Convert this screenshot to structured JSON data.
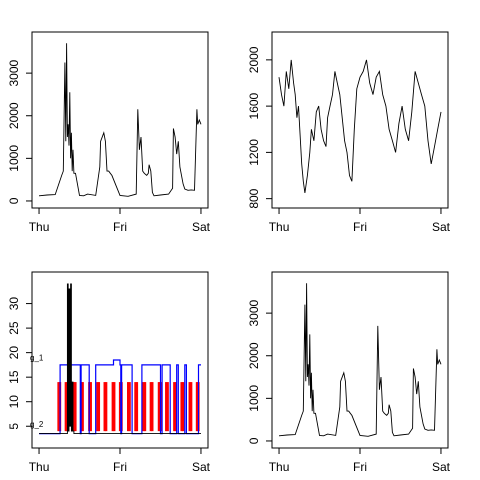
{
  "chart_data": [
    {
      "type": "line",
      "panel": "top-left",
      "color": "#000000",
      "x_ticks": [
        "Thu",
        "Fri",
        "Sat"
      ],
      "xlim": [
        0,
        2
      ],
      "ylim": [
        0,
        3800
      ],
      "y_ticks": [
        0,
        1000,
        2000,
        3000
      ],
      "y_tick_labels": [
        "0",
        "1000",
        "2000",
        "3000"
      ],
      "series": [
        {
          "x": [
            0,
            0.1,
            0.2,
            0.28,
            0.3,
            0.32,
            0.33,
            0.34,
            0.35,
            0.36,
            0.37,
            0.38,
            0.39,
            0.4,
            0.41,
            0.42,
            0.43,
            0.45,
            0.5,
            0.55,
            0.6,
            0.7,
            0.75,
            0.76,
            0.8,
            0.82,
            0.84,
            0.86,
            0.88,
            0.9,
            1.0,
            1.1,
            1.2,
            1.22,
            1.24,
            1.26,
            1.28,
            1.3,
            1.33,
            1.35,
            1.36,
            1.38,
            1.4,
            1.42,
            1.5,
            1.6,
            1.65,
            1.66,
            1.68,
            1.7,
            1.72,
            1.74,
            1.76,
            1.78,
            1.8,
            1.84,
            1.88,
            1.92,
            1.95,
            1.96,
            1.98,
            2.0
          ],
          "y": [
            120,
            140,
            150,
            600,
            700,
            3250,
            1400,
            3700,
            1500,
            1800,
            1300,
            2550,
            1000,
            1600,
            700,
            1200,
            650,
            650,
            130,
            120,
            160,
            130,
            800,
            1400,
            1600,
            1400,
            700,
            700,
            650,
            600,
            130,
            110,
            160,
            2150,
            1200,
            1500,
            700,
            650,
            600,
            650,
            850,
            700,
            200,
            120,
            140,
            160,
            300,
            1700,
            1500,
            1100,
            1400,
            800,
            600,
            400,
            280,
            250,
            260,
            250,
            2150,
            1800,
            1900,
            1800
          ]
        }
      ]
    },
    {
      "type": "line",
      "panel": "top-right",
      "color": "#000000",
      "x_ticks": [
        "Thu",
        "Fri",
        "Sat"
      ],
      "xlim": [
        0,
        2
      ],
      "ylim": [
        780,
        2180
      ],
      "y_ticks": [
        800,
        1200,
        1600,
        2000
      ],
      "y_tick_labels": [
        "800",
        "1200",
        "1600",
        "2000"
      ],
      "series": [
        {
          "x": [
            0,
            0.03,
            0.06,
            0.09,
            0.12,
            0.15,
            0.18,
            0.2,
            0.22,
            0.24,
            0.26,
            0.28,
            0.3,
            0.32,
            0.35,
            0.38,
            0.4,
            0.43,
            0.46,
            0.49,
            0.52,
            0.55,
            0.58,
            0.6,
            0.63,
            0.66,
            0.69,
            0.72,
            0.75,
            0.78,
            0.81,
            0.84,
            0.87,
            0.9,
            0.93,
            0.96,
            1.0,
            1.04,
            1.08,
            1.12,
            1.16,
            1.2,
            1.24,
            1.28,
            1.32,
            1.36,
            1.4,
            1.44,
            1.48,
            1.52,
            1.56,
            1.6,
            1.64,
            1.68,
            1.72,
            1.76,
            1.8,
            1.84,
            1.88,
            1.92,
            1.96,
            2.0
          ],
          "y": [
            1850,
            1700,
            1600,
            1900,
            1750,
            2000,
            1800,
            1700,
            1500,
            1600,
            1350,
            1100,
            950,
            850,
            1000,
            1200,
            1400,
            1300,
            1550,
            1600,
            1400,
            1300,
            1250,
            1500,
            1600,
            1700,
            1900,
            1800,
            1700,
            1500,
            1300,
            1200,
            1000,
            950,
            1400,
            1750,
            1850,
            1900,
            2000,
            1800,
            1700,
            1850,
            1900,
            1700,
            1600,
            1400,
            1300,
            1200,
            1450,
            1600,
            1400,
            1300,
            1550,
            1900,
            1800,
            1700,
            1600,
            1300,
            1100,
            1250,
            1400,
            1550
          ]
        }
      ]
    },
    {
      "type": "step",
      "panel": "bottom-left",
      "x_ticks": [
        "Thu",
        "Fri",
        "Sat"
      ],
      "xlim": [
        0,
        2
      ],
      "ylim": [
        2,
        35
      ],
      "y_ticks": [
        5,
        10,
        15,
        20,
        25,
        30
      ],
      "y_tick_labels": [
        "5",
        "10",
        "15",
        "20",
        "25",
        "30"
      ],
      "annotations": [
        {
          "text": "g_1",
          "x": 0,
          "y": 19
        },
        {
          "text": "g_2",
          "x": 0,
          "y": 5.5
        }
      ],
      "series": [
        {
          "color": "#0000ff",
          "x": [
            0,
            0.25,
            0.26,
            0.5,
            0.51,
            0.52,
            0.6,
            0.62,
            0.7,
            0.92,
            0.94,
            1.0,
            1.01,
            1.02,
            1.15,
            1.25,
            1.27,
            1.45,
            1.5,
            1.52,
            1.6,
            1.62,
            1.7,
            1.72,
            1.8,
            1.82,
            1.95,
            1.97,
            2.0
          ],
          "y": [
            3.5,
            3.5,
            17.5,
            17.5,
            3.5,
            17.5,
            17.5,
            3.5,
            17.5,
            18.5,
            18.5,
            17.5,
            3.5,
            17.5,
            3.5,
            3.5,
            17.5,
            17.5,
            3.5,
            17.5,
            17.5,
            3.5,
            17.5,
            3.5,
            17.5,
            3.5,
            3.5,
            17.5,
            17.5
          ]
        },
        {
          "color": "#000000",
          "x": [
            0,
            0.34,
            0.35,
            0.36,
            0.37,
            0.38,
            0.39,
            0.4,
            0.41,
            0.42,
            0.43,
            2.0
          ],
          "y": [
            3.5,
            3.5,
            34,
            4,
            33,
            5,
            34,
            4,
            14,
            4,
            3.5,
            3.5
          ]
        }
      ],
      "segments": {
        "color": "#ff0000",
        "x": [
          0.24,
          0.26,
          0.33,
          0.35,
          0.43,
          0.45,
          0.52,
          0.54,
          0.62,
          0.64,
          0.72,
          0.74,
          0.81,
          0.83,
          0.91,
          0.93,
          1.0,
          1.02,
          1.1,
          1.12,
          1.19,
          1.21,
          1.29,
          1.31,
          1.38,
          1.4,
          1.48,
          1.5,
          1.57,
          1.59,
          1.67,
          1.69,
          1.76,
          1.78,
          1.86,
          1.88,
          1.95,
          1.97
        ],
        "y_low": 4,
        "y_high": 14
      }
    },
    {
      "type": "line",
      "panel": "bottom-right",
      "color": "#000000",
      "x_ticks": [
        "Thu",
        "Fri",
        "Sat"
      ],
      "xlim": [
        0,
        2
      ],
      "ylim": [
        0,
        3800
      ],
      "y_ticks": [
        0,
        1000,
        2000,
        3000
      ],
      "y_tick_labels": [
        "0",
        "1000",
        "2000",
        "3000"
      ],
      "series": [
        {
          "x": [
            0,
            0.1,
            0.2,
            0.28,
            0.3,
            0.32,
            0.33,
            0.34,
            0.35,
            0.36,
            0.37,
            0.38,
            0.39,
            0.4,
            0.41,
            0.42,
            0.43,
            0.45,
            0.5,
            0.55,
            0.6,
            0.7,
            0.75,
            0.76,
            0.8,
            0.82,
            0.84,
            0.86,
            0.88,
            0.9,
            1.0,
            1.1,
            1.2,
            1.22,
            1.24,
            1.26,
            1.28,
            1.3,
            1.33,
            1.35,
            1.36,
            1.38,
            1.4,
            1.42,
            1.5,
            1.6,
            1.65,
            1.66,
            1.68,
            1.7,
            1.72,
            1.74,
            1.76,
            1.78,
            1.8,
            1.84,
            1.88,
            1.92,
            1.95,
            1.96,
            1.98,
            2.0
          ],
          "y": [
            120,
            140,
            150,
            600,
            700,
            3200,
            1400,
            3700,
            1500,
            1800,
            1300,
            2500,
            1000,
            1600,
            700,
            1200,
            650,
            650,
            130,
            120,
            160,
            130,
            800,
            1400,
            1600,
            1400,
            700,
            700,
            650,
            600,
            130,
            110,
            160,
            2700,
            1200,
            1500,
            700,
            650,
            600,
            650,
            850,
            700,
            200,
            120,
            140,
            160,
            300,
            1700,
            1500,
            1100,
            1400,
            800,
            600,
            400,
            280,
            250,
            260,
            250,
            2150,
            1800,
            1900,
            1800
          ]
        }
      ]
    }
  ]
}
